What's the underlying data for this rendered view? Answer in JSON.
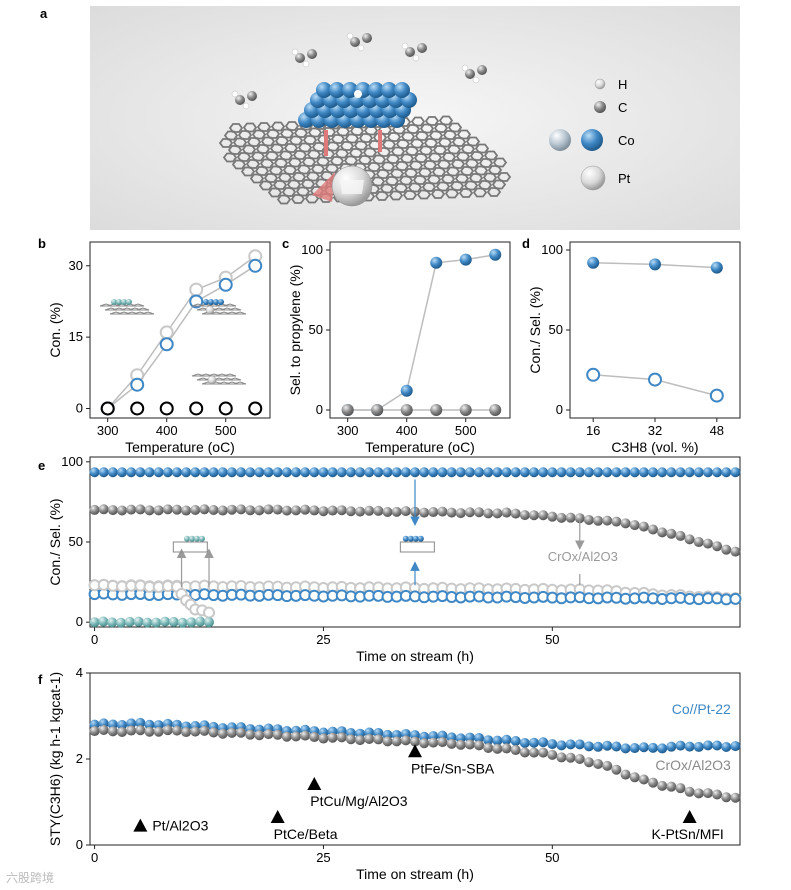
{
  "panels": {
    "a": "a",
    "b": "b",
    "c": "c",
    "d": "d",
    "e": "e",
    "f": "f"
  },
  "legend_a": {
    "H": "H",
    "C": "C",
    "Co": "Co",
    "Pt": "Pt"
  },
  "colors": {
    "blue": "#3f88c5",
    "grey": "#8a8a8a",
    "light_grey": "#c9c9c9",
    "black": "#000000",
    "teal": "#78b6b6"
  },
  "chart_data": [
    {
      "panel": "b",
      "type": "scatter",
      "xlabel": "Temperature (oC)",
      "ylabel": "Con. (%)",
      "xlim": [
        270,
        575
      ],
      "ylim": [
        -2,
        35
      ],
      "xticks": [
        300,
        400,
        500
      ],
      "yticks": [
        0,
        15,
        30
      ],
      "series": [
        {
          "x": [
            300,
            350,
            400,
            450,
            500,
            550
          ],
          "values": [
            0,
            7,
            16,
            25,
            27.5,
            32
          ],
          "color": "light_grey",
          "style": "line-open"
        },
        {
          "x": [
            300,
            350,
            400,
            450,
            500,
            550
          ],
          "values": [
            0,
            5,
            13.5,
            22.5,
            26,
            30
          ],
          "color": "blue",
          "style": "line-open"
        },
        {
          "x": [
            300,
            350,
            400,
            450,
            500,
            550
          ],
          "values": [
            0,
            0,
            0,
            0,
            0,
            0
          ],
          "color": "black",
          "style": "open"
        }
      ]
    },
    {
      "panel": "c",
      "type": "scatter",
      "xlabel": "Temperature (oC)",
      "ylabel": "Sel. to propylene (%)",
      "xlim": [
        270,
        575
      ],
      "ylim": [
        -5,
        105
      ],
      "xticks": [
        300,
        400,
        500
      ],
      "yticks": [
        0,
        50,
        100
      ],
      "series": [
        {
          "x": [
            300,
            350,
            400,
            450,
            500,
            550
          ],
          "values": [
            0,
            0,
            12,
            92,
            94,
            97
          ],
          "color": "blue",
          "style": "line-filled"
        },
        {
          "x": [
            300,
            350,
            400,
            450,
            500,
            550
          ],
          "values": [
            0,
            0,
            0,
            0,
            0,
            0
          ],
          "color": "grey",
          "style": "line-filled"
        }
      ]
    },
    {
      "panel": "d",
      "type": "scatter",
      "xlabel": "C3H8 (vol. %)",
      "ylabel": "Con./ Sel. (%)",
      "xlim": [
        10,
        54
      ],
      "ylim": [
        -5,
        105
      ],
      "xticks": [
        16,
        32,
        48
      ],
      "yticks": [
        0,
        50,
        100
      ],
      "series": [
        {
          "x": [
            16,
            32,
            48
          ],
          "values": [
            92,
            91,
            89
          ],
          "color": "blue",
          "style": "line-filled"
        },
        {
          "x": [
            16,
            32,
            48
          ],
          "values": [
            22,
            19,
            9
          ],
          "color": "blue",
          "style": "line-open"
        }
      ]
    },
    {
      "panel": "e",
      "type": "scatter",
      "xlabel": "Time on stream (h)",
      "ylabel": "Con./ Sel. (%)",
      "xlim": [
        -0.5,
        70.5
      ],
      "ylim": [
        -3,
        103
      ],
      "xticks": [
        0,
        25,
        50
      ],
      "yticks": [
        0,
        50,
        100
      ],
      "annotation": "CrOx/Al2O3",
      "series": [
        {
          "name": "Co//Pt selectivity",
          "x_start": 0,
          "x_end": 70,
          "values_start": 93.5,
          "values_end": 93.5,
          "color": "blue",
          "style": "filled"
        },
        {
          "name": "CrOx/Al2O3 selectivity",
          "x": [
            0,
            20,
            45,
            52,
            58,
            63,
            70
          ],
          "values": [
            70,
            70,
            68,
            65,
            62,
            55,
            44
          ],
          "color": "grey",
          "style": "filled"
        },
        {
          "name": "CrOx/Al2O3 conversion",
          "x": [
            0,
            20,
            40,
            55,
            62,
            70
          ],
          "values": [
            23,
            22,
            21,
            20,
            17,
            15
          ],
          "color": "light_grey",
          "style": "open"
        },
        {
          "name": "Co//Pt conversion",
          "x": [
            0,
            70
          ],
          "values": [
            17.5,
            14.5
          ],
          "color": "blue",
          "style": "open"
        },
        {
          "name": "deactivated conversion",
          "x": [
            0,
            9,
            10,
            11,
            12.5
          ],
          "values": [
            23,
            22,
            14,
            8,
            6
          ],
          "color": "light_grey",
          "style": "open"
        },
        {
          "name": "deactivated selectivity",
          "x": [
            0,
            12.5
          ],
          "values": [
            0,
            0
          ],
          "color": "teal",
          "style": "filled"
        }
      ]
    },
    {
      "panel": "f",
      "type": "scatter",
      "xlabel": "Time on stream (h)",
      "ylabel": "STY(C3H6) (kg h-1 kgcat-1)",
      "xlim": [
        -0.5,
        70.5
      ],
      "ylim": [
        0,
        4
      ],
      "xticks": [
        0,
        25,
        50
      ],
      "yticks": [
        0,
        2,
        4
      ],
      "series": [
        {
          "name": "Co//Pt-22",
          "x": [
            0,
            5,
            10,
            20,
            30,
            40,
            50,
            55,
            60,
            65,
            70
          ],
          "values": [
            2.8,
            2.82,
            2.78,
            2.68,
            2.6,
            2.5,
            2.35,
            2.3,
            2.25,
            2.3,
            2.3
          ],
          "color": "blue",
          "style": "filled"
        },
        {
          "name": "CrOx/Al2O3",
          "x": [
            0,
            10,
            20,
            30,
            40,
            50,
            55,
            60,
            65,
            70
          ],
          "values": [
            2.65,
            2.65,
            2.55,
            2.45,
            2.35,
            2.1,
            1.9,
            1.5,
            1.25,
            1.1
          ],
          "color": "grey",
          "style": "filled"
        }
      ],
      "labels": {
        "co_pt": "Co//Pt-22",
        "crox": "CrOx/Al2O3"
      },
      "references": [
        {
          "label": "Pt/Al2O3",
          "x": 5,
          "y": 0.45
        },
        {
          "label": "PtCe/Beta",
          "x": 20,
          "y": 0.65
        },
        {
          "label": "PtCu/Mg/Al2O3",
          "x": 24,
          "y": 1.42
        },
        {
          "label": "PtFe/Sn-SBA",
          "x": 35,
          "y": 2.18
        },
        {
          "label": "K-PtSn/MFI",
          "x": 65,
          "y": 0.65
        }
      ]
    }
  ],
  "watermark": "六股跨境"
}
